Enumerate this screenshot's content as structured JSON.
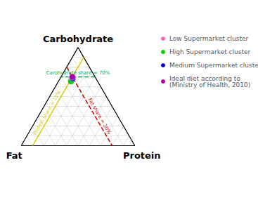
{
  "chart_data": {
    "type": "ternary",
    "axes": [
      {
        "component": "carb",
        "label": "Carbohydrate"
      },
      {
        "component": "protein",
        "label": "Protein"
      },
      {
        "component": "fat",
        "label": "Fat"
      }
    ],
    "ticks": [
      0.1,
      0.2,
      0.3,
      0.4,
      0.5,
      0.6,
      0.7,
      0.8,
      0.9
    ],
    "grid": true,
    "tick_labels": false,
    "legend": "right",
    "marker": "circle",
    "series": [
      {
        "name": "Low Supermarket cluster",
        "color": "#ff69b4",
        "carb": 0.685,
        "protein": 0.1,
        "fat": 0.215
      },
      {
        "name": "High Supermarket cluster",
        "color": "#00cc00",
        "carb": 0.655,
        "protein": 0.11,
        "fat": 0.235
      },
      {
        "name": "Medium Supermarket cluster",
        "color": "#0000dd",
        "carb": 0.685,
        "protein": 0.11,
        "fat": 0.205
      },
      {
        "name": "Ideal diet according to\n(Ministry of Health, 2010)",
        "color": "#aa00aa",
        "carb": 0.7,
        "protein": 0.1,
        "fat": 0.2
      }
    ],
    "annotations": [
      {
        "component": "carb",
        "value": 0.7,
        "color": "#00aa44",
        "line_style": "dashed",
        "label": "Carohydrate share = 70%"
      },
      {
        "component": "protein",
        "value": 0.1,
        "color": "#ddcc00",
        "line_style": "solid",
        "label": "Protein share = 10%"
      },
      {
        "component": "fat",
        "value": 0.2,
        "color": "#cc0000",
        "line_style": "dashed",
        "label": "Fat share = 20%"
      }
    ]
  }
}
